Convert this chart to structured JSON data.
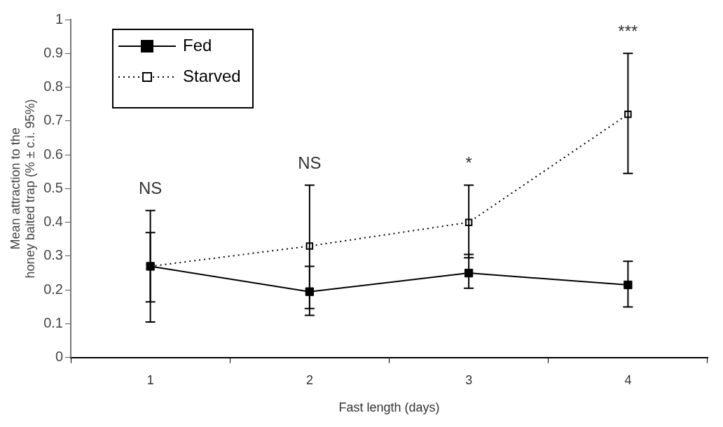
{
  "chart_data": {
    "type": "line",
    "xlabel": "Fast length (days)",
    "ylabel": "Mean attraction to the honey baited trap (% ± c.i. 95%)",
    "categories": [
      "1",
      "2",
      "3",
      "4"
    ],
    "series": [
      {
        "name": "Fed",
        "color": "#000000",
        "line_style": "solid",
        "values": [
          0.27,
          0.195,
          0.25,
          0.215
        ],
        "errors": [
          [
            0.165,
            0.37
          ],
          [
            0.145,
            0.27
          ],
          [
            0.205,
            0.305
          ],
          [
            0.15,
            0.285
          ]
        ]
      },
      {
        "name": "Starved",
        "color": "#000000",
        "line_style": "dotted",
        "values": [
          0.27,
          0.33,
          0.4,
          0.72
        ],
        "errors": [
          [
            0.105,
            0.435
          ],
          [
            0.125,
            0.51
          ],
          [
            0.295,
            0.51
          ],
          [
            0.545,
            0.9
          ]
        ]
      }
    ],
    "ylim": [
      0,
      1
    ],
    "yticks": [
      0,
      0.1,
      0.2,
      0.3,
      0.4,
      0.5,
      0.6,
      0.7,
      0.8,
      0.9,
      1
    ],
    "annotations": [
      "NS",
      "NS",
      "*",
      "***"
    ],
    "marker": "square",
    "grid": false,
    "legend": "top left"
  }
}
